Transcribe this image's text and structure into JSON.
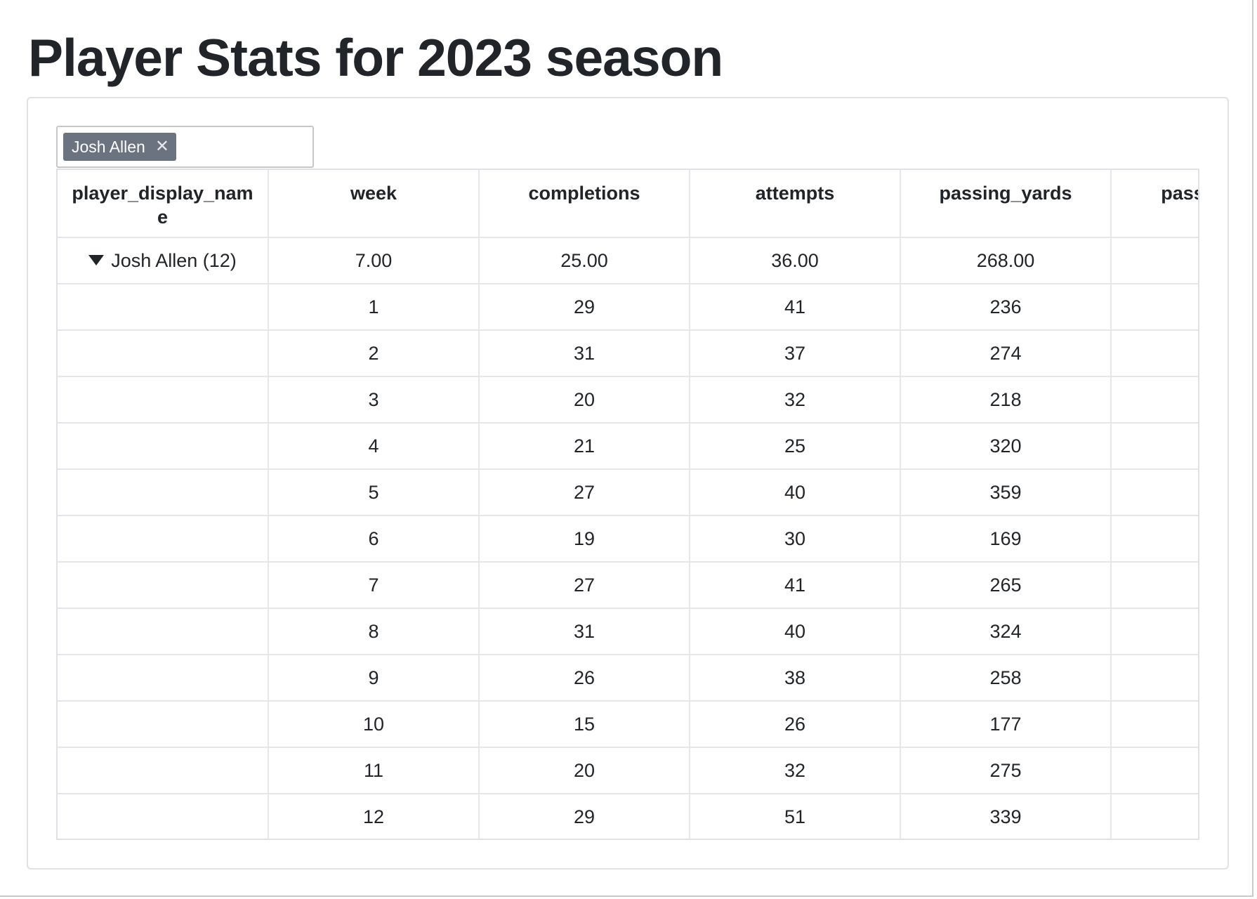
{
  "page": {
    "title": "Player Stats for 2023 season"
  },
  "filter": {
    "chips": [
      {
        "label": "Josh Allen",
        "remove_glyph": "✕"
      }
    ]
  },
  "table": {
    "columns": [
      "player_display_name",
      "week",
      "completions",
      "attempts",
      "passing_yards",
      "passing_tds"
    ],
    "group_row": {
      "label": "Josh Allen (12)",
      "icon": "caret-down-icon",
      "values": [
        "7.00",
        "25.00",
        "36.00",
        "268.00",
        ""
      ]
    },
    "rows": [
      [
        "",
        "1",
        "29",
        "41",
        "236",
        ""
      ],
      [
        "",
        "2",
        "31",
        "37",
        "274",
        ""
      ],
      [
        "",
        "3",
        "20",
        "32",
        "218",
        ""
      ],
      [
        "",
        "4",
        "21",
        "25",
        "320",
        ""
      ],
      [
        "",
        "5",
        "27",
        "40",
        "359",
        ""
      ],
      [
        "",
        "6",
        "19",
        "30",
        "169",
        ""
      ],
      [
        "",
        "7",
        "27",
        "41",
        "265",
        ""
      ],
      [
        "",
        "8",
        "31",
        "40",
        "324",
        ""
      ],
      [
        "",
        "9",
        "26",
        "38",
        "258",
        ""
      ],
      [
        "",
        "10",
        "15",
        "26",
        "177",
        ""
      ],
      [
        "",
        "11",
        "20",
        "32",
        "275",
        ""
      ],
      [
        "",
        "12",
        "29",
        "51",
        "339",
        ""
      ]
    ]
  },
  "colors": {
    "chip_bg": "#6b7280",
    "border": "#dee2e6",
    "text": "#212529"
  }
}
